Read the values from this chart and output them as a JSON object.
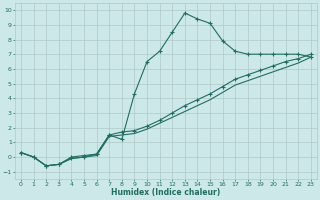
{
  "bg_color": "#cde8e8",
  "grid_color": "#b0c8c8",
  "line_color": "#1e6e62",
  "xlabel": "Humidex (Indice chaleur)",
  "xlim": [
    -0.5,
    23.5
  ],
  "ylim": [
    -1.5,
    10.5
  ],
  "xticks": [
    0,
    1,
    2,
    3,
    4,
    5,
    6,
    7,
    8,
    9,
    10,
    11,
    12,
    13,
    14,
    15,
    16,
    17,
    18,
    19,
    20,
    21,
    22,
    23
  ],
  "yticks": [
    -1,
    0,
    1,
    2,
    3,
    4,
    5,
    6,
    7,
    8,
    9,
    10
  ],
  "line1_x": [
    0,
    1,
    2,
    3,
    4,
    5,
    6,
    7,
    8,
    9,
    10,
    11,
    12,
    13,
    14,
    15,
    16,
    17,
    18,
    19,
    20,
    21,
    22,
    23
  ],
  "line1_y": [
    0.3,
    0.0,
    -0.6,
    -0.5,
    0.0,
    0.1,
    0.2,
    1.5,
    1.2,
    4.3,
    6.5,
    7.2,
    8.5,
    9.8,
    9.4,
    9.1,
    7.9,
    7.2,
    7.0,
    7.0,
    7.0,
    7.0,
    7.0,
    6.8
  ],
  "line2_x": [
    0,
    1,
    2,
    3,
    4,
    5,
    6,
    7,
    8,
    9,
    10,
    11,
    12,
    13,
    14,
    15,
    16,
    17,
    18,
    19,
    20,
    21,
    22,
    23
  ],
  "line2_y": [
    0.3,
    0.0,
    -0.6,
    -0.5,
    -0.1,
    0.0,
    0.2,
    1.5,
    1.7,
    1.8,
    2.1,
    2.5,
    3.0,
    3.5,
    3.9,
    4.3,
    4.8,
    5.3,
    5.6,
    5.9,
    6.2,
    6.5,
    6.7,
    7.0
  ],
  "line3_x": [
    0,
    1,
    2,
    3,
    4,
    5,
    6,
    7,
    8,
    9,
    10,
    11,
    12,
    13,
    14,
    15,
    16,
    17,
    18,
    19,
    20,
    21,
    22,
    23
  ],
  "line3_y": [
    0.3,
    0.0,
    -0.6,
    -0.5,
    -0.1,
    0.0,
    0.1,
    1.4,
    1.5,
    1.6,
    1.9,
    2.3,
    2.7,
    3.1,
    3.5,
    3.9,
    4.4,
    4.9,
    5.2,
    5.5,
    5.8,
    6.1,
    6.4,
    6.8
  ]
}
